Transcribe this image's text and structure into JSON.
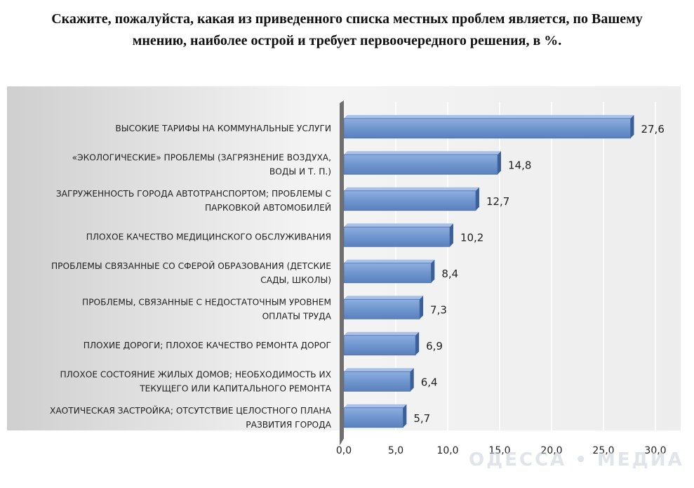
{
  "title_lines": [
    "Скажите, пожалуйста, какая из приведенного списка местных проблем является, по Вашему",
    "мнению, наиболее острой и требует первоочередного решения, в %."
  ],
  "watermark": "ОДЕССА • МЕДИА",
  "chart_data": {
    "type": "bar",
    "orientation": "horizontal",
    "categories": [
      [
        "ВЫСОКИЕ ТАРИФЫ НА КОММУНАЛЬНЫЕ УСЛУГИ"
      ],
      [
        "«ЭКОЛОГИЧЕСКИЕ» ПРОБЛЕМЫ (ЗАГРЯЗНЕНИЕ ВОЗДУХА,",
        "ВОДЫ И Т. П.)"
      ],
      [
        "ЗАГРУЖЕННОСТЬ ГОРОДА АВТОТРАНСПОРТОМ; ПРОБЛЕМЫ С",
        "ПАРКОВКОЙ АВТОМОБИЛЕЙ"
      ],
      [
        "ПЛОХОЕ КАЧЕСТВО МЕДИЦИНСКОГО ОБСЛУЖИВАНИЯ"
      ],
      [
        "ПРОБЛЕМЫ СВЯЗАННЫЕ СО СФЕРОЙ ОБРАЗОВАНИЯ (ДЕТСКИЕ",
        "САДЫ, ШКОЛЫ)"
      ],
      [
        "ПРОБЛЕМЫ, СВЯЗАННЫЕ С НЕДОСТАТОЧНЫМ УРОВНЕМ",
        "ОПЛАТЫ ТРУДА"
      ],
      [
        "ПЛОХИЕ ДОРОГИ; ПЛОХОЕ КАЧЕСТВО РЕМОНТА ДОРОГ"
      ],
      [
        "ПЛОХОЕ СОСТОЯНИЕ ЖИЛЫХ ДОМОВ; НЕОБХОДИМОСТЬ ИХ",
        "ТЕКУЩЕГО ИЛИ КАПИТАЛЬНОГО РЕМОНТА"
      ],
      [
        "ХАОТИЧЕСКАЯ ЗАСТРОЙКА; ОТСУТСТВИЕ ЦЕЛОСТНОГО ПЛАНА",
        "РАЗВИТИЯ ГОРОДА"
      ]
    ],
    "values": [
      27.6,
      14.8,
      12.7,
      10.2,
      8.4,
      7.3,
      6.9,
      6.4,
      5.7
    ],
    "value_labels": [
      "27,6",
      "14,8",
      "12,7",
      "10,2",
      "8,4",
      "7,3",
      "6,9",
      "6,4",
      "5,7"
    ],
    "x_ticks": [
      0,
      5,
      10,
      15,
      20,
      25,
      30
    ],
    "x_tick_labels": [
      "0,0",
      "5,0",
      "10,0",
      "15,0",
      "20,0",
      "25,0",
      "30,0"
    ],
    "xlim": [
      0,
      30
    ],
    "grid": true,
    "bar_color": "#7096cf",
    "bar_edge_color": "#4a6fa8"
  }
}
